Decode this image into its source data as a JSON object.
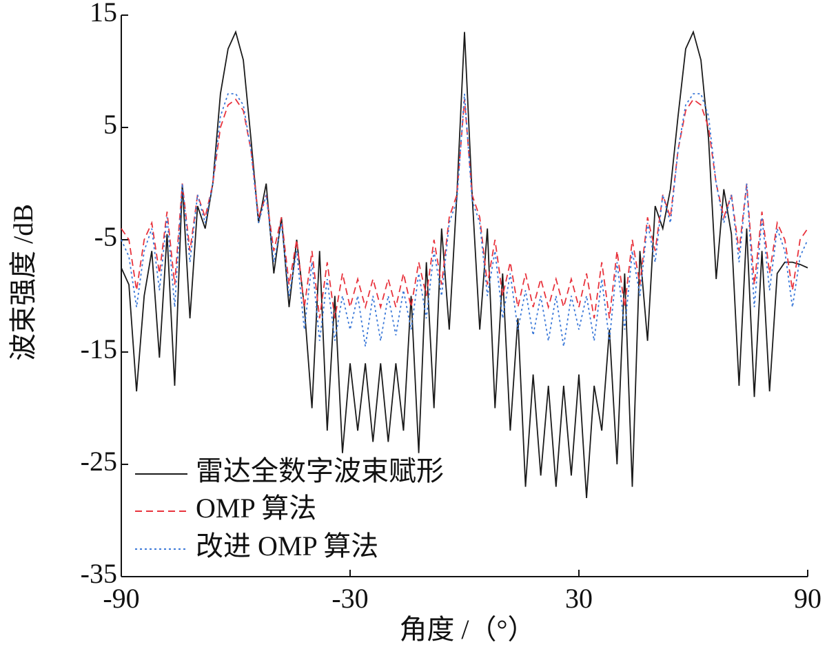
{
  "chart_data": {
    "type": "line",
    "x_label": "角度 /（°）",
    "y_label": "波束强度 /dB",
    "xlim": [
      -90,
      90
    ],
    "xticks": [
      -90,
      -30,
      30,
      90
    ],
    "ylim": [
      -35,
      15
    ],
    "yticks": [
      15,
      5,
      -5,
      -15,
      -25,
      -35
    ],
    "legend": "lower-left",
    "x": [
      -90,
      -88,
      -86,
      -84,
      -82,
      -80,
      -78,
      -76,
      -74,
      -72,
      -70,
      -68,
      -66,
      -64,
      -62,
      -60,
      -58,
      -56,
      -54,
      -52,
      -50,
      -48,
      -46,
      -44,
      -42,
      -40,
      -38,
      -36,
      -34,
      -32,
      -30,
      -28,
      -26,
      -24,
      -22,
      -20,
      -18,
      -16,
      -14,
      -12,
      -10,
      -8,
      -6,
      -4,
      -2,
      0,
      2,
      4,
      6,
      8,
      10,
      12,
      14,
      16,
      18,
      20,
      22,
      24,
      26,
      28,
      30,
      32,
      34,
      36,
      38,
      40,
      42,
      44,
      46,
      48,
      50,
      52,
      54,
      56,
      58,
      60,
      62,
      64,
      66,
      68,
      70,
      72,
      74,
      76,
      78,
      80,
      82,
      84,
      86,
      88,
      90
    ],
    "series": [
      {
        "name": "雷达全数字波束赋形",
        "color": "#1a1a1a",
        "dash": "solid",
        "values": [
          -7.5,
          -9,
          -18.5,
          -10,
          -6,
          -15.5,
          -4.5,
          -18,
          0,
          -12,
          -2,
          -4,
          0,
          8,
          12,
          13.5,
          11,
          4,
          -3.5,
          0,
          -8,
          -3,
          -11,
          -5,
          -11,
          -20,
          -6,
          -22,
          -10,
          -24,
          -16,
          -22,
          -16,
          -23,
          -16,
          -23,
          -16,
          -22,
          -10,
          -24,
          -7,
          -20,
          -4,
          -13,
          -1,
          13.5,
          -1,
          -13,
          -4,
          -20,
          -8,
          -22,
          -12,
          -27,
          -17,
          -26,
          -18,
          -27,
          -18,
          -26,
          -17,
          -28,
          -18,
          -22,
          -13,
          -25,
          -8,
          -27,
          -6,
          -14,
          -2,
          -4,
          -0.5,
          6,
          12,
          13.5,
          11,
          4,
          -8.5,
          -0.5,
          -4.5,
          -18,
          -4,
          -19,
          -6,
          -18.5,
          -8,
          -7,
          -7,
          -7.2,
          -7.5
        ]
      },
      {
        "name": "OMP 算法",
        "color": "#e8323c",
        "dash": "dashed",
        "values": [
          -4,
          -5,
          -9.5,
          -5,
          -3.5,
          -8,
          -2.5,
          -9,
          0,
          -6,
          -1,
          -3,
          0,
          5,
          7,
          7.5,
          6.5,
          3,
          -3,
          -1,
          -6,
          -3,
          -9,
          -5,
          -11,
          -6,
          -12,
          -7,
          -12,
          -8,
          -11,
          -8.5,
          -11,
          -8.5,
          -11,
          -8.5,
          -11,
          -8,
          -11,
          -7,
          -10,
          -5,
          -9,
          -3,
          -1,
          7.5,
          -1,
          -3,
          -9,
          -5,
          -10,
          -7,
          -11,
          -8,
          -11,
          -8.5,
          -11,
          -8.5,
          -11,
          -8.5,
          -11,
          -8,
          -12,
          -7,
          -12,
          -6,
          -11,
          -5,
          -9,
          -3,
          -6,
          -1,
          -3,
          3,
          6.5,
          7.5,
          7,
          5,
          0,
          -3,
          -1,
          -6,
          0,
          -9,
          -2.5,
          -8,
          -3.5,
          -5,
          -9.5,
          -5,
          -4
        ]
      },
      {
        "name": "改进 OMP 算法",
        "color": "#3a78d8",
        "dash": "dotted",
        "values": [
          -5,
          -6.5,
          -11,
          -6,
          -4,
          -9.5,
          -3,
          -11,
          0,
          -7,
          -1,
          -3.5,
          0,
          6,
          8,
          8,
          7,
          3,
          -3.5,
          -1,
          -7,
          -3.5,
          -10,
          -6,
          -13,
          -7,
          -14,
          -8.5,
          -14,
          -10,
          -13,
          -10,
          -14.5,
          -10,
          -14,
          -10,
          -13.5,
          -9.5,
          -13,
          -8,
          -12,
          -6,
          -10,
          -3.5,
          -1.5,
          8,
          -1.5,
          -3.5,
          -10,
          -6,
          -12,
          -8,
          -13,
          -9.5,
          -13.5,
          -10,
          -14,
          -10,
          -14.5,
          -10,
          -13,
          -10,
          -14,
          -8.5,
          -14,
          -7,
          -13,
          -6,
          -10,
          -3.5,
          -7,
          -1,
          -3.5,
          3,
          7,
          8,
          8,
          6,
          0,
          -3.5,
          -1,
          -7,
          0,
          -11,
          -3,
          -9.5,
          -4,
          -6,
          -11,
          -6.5,
          -5
        ]
      }
    ]
  }
}
